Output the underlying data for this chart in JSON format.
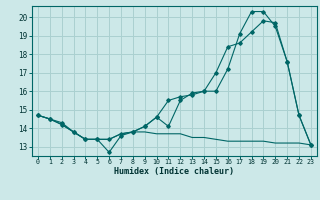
{
  "xlabel": "Humidex (Indice chaleur)",
  "ylabel": "",
  "bg_color": "#cce8e8",
  "grid_color": "#aad0d0",
  "line_color": "#006666",
  "xlim": [
    -0.5,
    23.5
  ],
  "ylim": [
    12.5,
    20.6
  ],
  "xticks": [
    0,
    1,
    2,
    3,
    4,
    5,
    6,
    7,
    8,
    9,
    10,
    11,
    12,
    13,
    14,
    15,
    16,
    17,
    18,
    19,
    20,
    21,
    22,
    23
  ],
  "yticks": [
    13,
    14,
    15,
    16,
    17,
    18,
    19,
    20
  ],
  "line1_x": [
    0,
    1,
    2,
    3,
    4,
    5,
    6,
    7,
    8,
    9,
    10,
    11,
    12,
    13,
    14,
    15,
    16,
    17,
    18,
    19,
    20,
    21,
    22,
    23
  ],
  "line1_y": [
    14.7,
    14.5,
    14.3,
    13.8,
    13.4,
    13.4,
    12.7,
    13.6,
    13.8,
    14.1,
    14.6,
    14.1,
    15.5,
    15.9,
    16.0,
    16.0,
    17.2,
    19.1,
    20.3,
    20.3,
    19.5,
    17.6,
    14.7,
    13.1
  ],
  "line2_x": [
    0,
    1,
    2,
    3,
    4,
    5,
    6,
    7,
    8,
    9,
    10,
    11,
    12,
    13,
    14,
    15,
    16,
    17,
    18,
    19,
    20,
    21,
    22,
    23
  ],
  "line2_y": [
    14.7,
    14.5,
    14.2,
    13.8,
    13.4,
    13.4,
    13.4,
    13.7,
    13.8,
    14.1,
    14.6,
    15.5,
    15.7,
    15.8,
    16.0,
    17.0,
    18.4,
    18.6,
    19.2,
    19.8,
    19.7,
    17.6,
    14.7,
    13.1
  ],
  "line3_x": [
    0,
    1,
    2,
    3,
    4,
    5,
    6,
    7,
    8,
    9,
    10,
    11,
    12,
    13,
    14,
    15,
    16,
    17,
    18,
    19,
    20,
    21,
    22,
    23
  ],
  "line3_y": [
    14.7,
    14.5,
    14.2,
    13.8,
    13.4,
    13.4,
    13.4,
    13.7,
    13.8,
    13.8,
    13.7,
    13.7,
    13.7,
    13.5,
    13.5,
    13.4,
    13.3,
    13.3,
    13.3,
    13.3,
    13.2,
    13.2,
    13.2,
    13.1
  ]
}
